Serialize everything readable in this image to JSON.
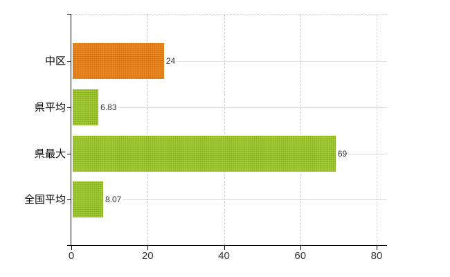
{
  "chart_data": {
    "type": "bar",
    "orientation": "horizontal",
    "title": "",
    "categories": [
      "中区",
      "県平均",
      "県最大",
      "全国平均"
    ],
    "values": [
      24,
      6.83,
      69,
      8.07
    ],
    "value_labels": [
      "24",
      "6.83",
      "69",
      "8.07"
    ],
    "bar_color_keys": [
      "orange",
      "green",
      "green",
      "green"
    ],
    "x_ticks": [
      0,
      20,
      40,
      60,
      80
    ],
    "x_tick_labels": [
      "0",
      "20",
      "40",
      "60",
      "80"
    ],
    "xlim": [
      0,
      82.7
    ],
    "grid": true,
    "legend_position": "none"
  },
  "colors": {
    "bar_orange": "#ec8a21",
    "bar_orange_dot": "#cd680f",
    "bar_green": "#a4cc36",
    "bar_green_dot": "#84ab1d",
    "horizontal_gridline": "#d3d9d0",
    "vertical_gridline": "#d6d1d8",
    "axis": "#000000",
    "category_label": "#000000",
    "value_label": "#333333",
    "x_tick_label": "#333333",
    "background": "#ffffff"
  }
}
